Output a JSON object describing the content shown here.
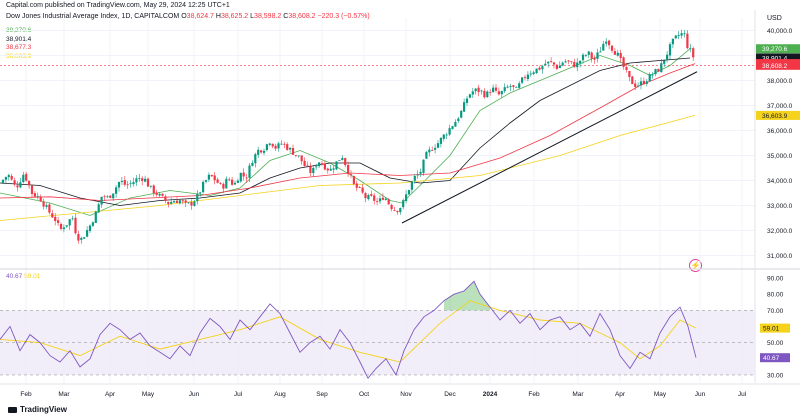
{
  "header": {
    "published": "Capital.com published on TradingView.com, May 29, 2024 12:25 UTC+1"
  },
  "symbol": {
    "name": "Dow Jones Industrial Average Index, 1D, CAPITALCOM",
    "open_label": "O",
    "open": "38,624.7",
    "high_label": "H",
    "high": "38,625.2",
    "low_label": "L",
    "low": "38,598.2",
    "close_label": "C",
    "close": "38,608.2",
    "change": "−220.3 (−0.57%)"
  },
  "ma_legend": [
    {
      "value": "39,270.6",
      "color": "#4caf50"
    },
    {
      "value": "38,901.4",
      "color": "#131722"
    },
    {
      "value": "38,677.3",
      "color": "#f23645"
    },
    {
      "value": "36,603.9",
      "color": "#f5d21b"
    }
  ],
  "rsi_legend": {
    "rsi": "40.67",
    "ma": "59.01",
    "rsi_color": "#7e57c2",
    "ma_color": "#f5d21b"
  },
  "currency": "USD",
  "branding": "TradingView",
  "colors": {
    "up": "#089981",
    "down": "#f23645",
    "grid": "#f0f3fa",
    "rsi_band": "#ede7f6"
  },
  "chart_data": [
    {
      "type": "candlestick",
      "y_axis_labels": [
        "40,000.0",
        "39,000.0",
        "38,000.0",
        "37,000.0",
        "36,000.0",
        "35,000.0",
        "34,000.0",
        "33,000.0",
        "32,000.0",
        "31,000.0"
      ],
      "ylim": [
        30500,
        40500
      ],
      "x_axis_labels": [
        "Feb",
        "Mar",
        "Apr",
        "May",
        "Jun",
        "Jul",
        "Aug",
        "Sep",
        "Oct",
        "Nov",
        "Dec",
        "2024",
        "Feb",
        "Mar",
        "Apr",
        "May",
        "Jun",
        "Jul"
      ],
      "price_tags": [
        {
          "value": "39,270.6",
          "color": "#4caf50",
          "y": 39270.6
        },
        {
          "value": "38,901.4",
          "color": "#131722",
          "y": 38901.4
        },
        {
          "value": "38,677.3",
          "color": "#f23645",
          "y": 38677.3
        },
        {
          "value": "38,608.2",
          "color": "#f23645",
          "y": 38608.2
        },
        {
          "value": "36,603.9",
          "color": "#f5d21b",
          "y": 36603.9
        }
      ],
      "close_path": [
        [
          0,
          33900
        ],
        [
          8,
          34250
        ],
        [
          16,
          33700
        ],
        [
          24,
          34300
        ],
        [
          32,
          33500
        ],
        [
          40,
          33300
        ],
        [
          48,
          32800
        ],
        [
          56,
          32400
        ],
        [
          60,
          32000
        ],
        [
          64,
          32200
        ],
        [
          68,
          32300
        ],
        [
          72,
          32600
        ],
        [
          76,
          31900
        ],
        [
          80,
          31600
        ],
        [
          84,
          31800
        ],
        [
          90,
          32200
        ],
        [
          96,
          32700
        ],
        [
          102,
          33400
        ],
        [
          108,
          33300
        ],
        [
          114,
          33600
        ],
        [
          120,
          34000
        ],
        [
          126,
          33800
        ],
        [
          132,
          33900
        ],
        [
          138,
          34100
        ],
        [
          144,
          34100
        ],
        [
          150,
          33700
        ],
        [
          156,
          33500
        ],
        [
          162,
          33300
        ],
        [
          168,
          33100
        ],
        [
          174,
          33200
        ],
        [
          180,
          33200
        ],
        [
          186,
          33000
        ],
        [
          192,
          33100
        ],
        [
          198,
          33400
        ],
        [
          204,
          33900
        ],
        [
          210,
          34200
        ],
        [
          216,
          34000
        ],
        [
          222,
          33700
        ],
        [
          228,
          34100
        ],
        [
          234,
          33800
        ],
        [
          240,
          34300
        ],
        [
          246,
          34100
        ],
        [
          252,
          34800
        ],
        [
          258,
          35200
        ],
        [
          264,
          35300
        ],
        [
          270,
          35600
        ],
        [
          276,
          35300
        ],
        [
          282,
          35500
        ],
        [
          288,
          35300
        ],
        [
          294,
          35100
        ],
        [
          300,
          34900
        ],
        [
          306,
          34500
        ],
        [
          312,
          34300
        ],
        [
          318,
          34800
        ],
        [
          324,
          34600
        ],
        [
          330,
          34400
        ],
        [
          336,
          34700
        ],
        [
          342,
          35000
        ],
        [
          348,
          34400
        ],
        [
          354,
          33800
        ],
        [
          360,
          33600
        ],
        [
          366,
          33300
        ],
        [
          372,
          33300
        ],
        [
          378,
          33100
        ],
        [
          384,
          33400
        ],
        [
          390,
          33000
        ],
        [
          396,
          32800
        ],
        [
          402,
          33000
        ],
        [
          408,
          33600
        ],
        [
          414,
          34100
        ],
        [
          420,
          34300
        ],
        [
          426,
          35000
        ],
        [
          432,
          35300
        ],
        [
          438,
          35500
        ],
        [
          444,
          35800
        ],
        [
          450,
          36100
        ],
        [
          456,
          36400
        ],
        [
          462,
          36800
        ],
        [
          468,
          37400
        ],
        [
          474,
          37600
        ],
        [
          480,
          37600
        ],
        [
          486,
          37400
        ],
        [
          492,
          37700
        ],
        [
          498,
          37400
        ],
        [
          504,
          37600
        ],
        [
          510,
          37800
        ],
        [
          516,
          37600
        ],
        [
          522,
          38000
        ],
        [
          528,
          38300
        ],
        [
          534,
          38400
        ],
        [
          540,
          38500
        ],
        [
          546,
          38700
        ],
        [
          552,
          38700
        ],
        [
          558,
          38500
        ],
        [
          564,
          38800
        ],
        [
          570,
          38700
        ],
        [
          576,
          38600
        ],
        [
          582,
          38900
        ],
        [
          588,
          39100
        ],
        [
          594,
          38800
        ],
        [
          600,
          39200
        ],
        [
          606,
          39700
        ],
        [
          612,
          39300
        ],
        [
          618,
          39000
        ],
        [
          624,
          38500
        ],
        [
          630,
          38000
        ],
        [
          636,
          37800
        ],
        [
          642,
          37900
        ],
        [
          648,
          38100
        ],
        [
          654,
          38300
        ],
        [
          660,
          38500
        ],
        [
          666,
          39000
        ],
        [
          672,
          39500
        ],
        [
          678,
          39800
        ],
        [
          684,
          39900
        ],
        [
          688,
          39300
        ],
        [
          692,
          39100
        ],
        [
          696,
          38608
        ]
      ],
      "x_year_span": [
        0,
        800
      ],
      "trendline": [
        [
          402,
          32300
        ],
        [
          697,
          38350
        ]
      ],
      "ma_paths": [
        {
          "name": "ma20",
          "color": "#4caf50",
          "points": [
            [
              0,
              33500
            ],
            [
              50,
              33100
            ],
            [
              90,
              32600
            ],
            [
              130,
              33300
            ],
            [
              170,
              33600
            ],
            [
              210,
              33400
            ],
            [
              240,
              33700
            ],
            [
              270,
              34800
            ],
            [
              300,
              35200
            ],
            [
              330,
              34700
            ],
            [
              360,
              34000
            ],
            [
              390,
              33200
            ],
            [
              402,
              33100
            ],
            [
              420,
              33800
            ],
            [
              450,
              35000
            ],
            [
              480,
              36800
            ],
            [
              510,
              37500
            ],
            [
              540,
              38000
            ],
            [
              570,
              38500
            ],
            [
              600,
              39000
            ],
            [
              630,
              38600
            ],
            [
              650,
              38200
            ],
            [
              670,
              38600
            ],
            [
              690,
              39270
            ]
          ]
        },
        {
          "name": "ma50",
          "color": "#131722",
          "points": [
            [
              0,
              33900
            ],
            [
              40,
              33800
            ],
            [
              80,
              33300
            ],
            [
              120,
              33000
            ],
            [
              160,
              33200
            ],
            [
              200,
              33300
            ],
            [
              240,
              33500
            ],
            [
              270,
              34100
            ],
            [
              300,
              34500
            ],
            [
              330,
              34700
            ],
            [
              360,
              34700
            ],
            [
              390,
              34100
            ],
            [
              420,
              33900
            ],
            [
              450,
              34000
            ],
            [
              480,
              35300
            ],
            [
              510,
              36300
            ],
            [
              540,
              37200
            ],
            [
              570,
              37800
            ],
            [
              600,
              38400
            ],
            [
              630,
              38700
            ],
            [
              660,
              38800
            ],
            [
              690,
              38901
            ]
          ]
        },
        {
          "name": "ma100",
          "color": "#f23645",
          "points": [
            [
              0,
              33300
            ],
            [
              50,
              33350
            ],
            [
              100,
              33200
            ],
            [
              150,
              33300
            ],
            [
              200,
              33400
            ],
            [
              250,
              33700
            ],
            [
              300,
              34100
            ],
            [
              350,
              34300
            ],
            [
              400,
              34200
            ],
            [
              450,
              34300
            ],
            [
              500,
              34900
            ],
            [
              550,
              35800
            ],
            [
              600,
              36900
            ],
            [
              640,
              37800
            ],
            [
              670,
              38300
            ],
            [
              695,
              38677
            ]
          ]
        },
        {
          "name": "ma200",
          "color": "#f5d21b",
          "points": [
            [
              0,
              32400
            ],
            [
              80,
              32700
            ],
            [
              160,
              33000
            ],
            [
              240,
              33400
            ],
            [
              320,
              33800
            ],
            [
              400,
              33900
            ],
            [
              480,
              34200
            ],
            [
              560,
              35000
            ],
            [
              620,
              35800
            ],
            [
              695,
              36604
            ]
          ]
        }
      ]
    },
    {
      "type": "line",
      "title": "RSI",
      "y_axis_labels": [
        "90.00",
        "80.00",
        "70.00",
        "60.00",
        "50.00",
        "40.00",
        "30.00"
      ],
      "ylim": [
        25,
        95
      ],
      "band": [
        30,
        70
      ],
      "midline": 50,
      "value_tags": [
        {
          "value": "59.01",
          "color": "#f5d21b",
          "y": 59.01
        },
        {
          "value": "40.67",
          "color": "#7e57c2",
          "y": 40.67
        }
      ],
      "rsi": [
        [
          0,
          52
        ],
        [
          10,
          60
        ],
        [
          20,
          45
        ],
        [
          30,
          55
        ],
        [
          40,
          50
        ],
        [
          50,
          42
        ],
        [
          60,
          38
        ],
        [
          70,
          45
        ],
        [
          80,
          35
        ],
        [
          90,
          40
        ],
        [
          100,
          55
        ],
        [
          110,
          62
        ],
        [
          120,
          58
        ],
        [
          130,
          52
        ],
        [
          140,
          56
        ],
        [
          150,
          48
        ],
        [
          160,
          44
        ],
        [
          170,
          40
        ],
        [
          180,
          48
        ],
        [
          190,
          42
        ],
        [
          200,
          56
        ],
        [
          210,
          65
        ],
        [
          220,
          60
        ],
        [
          230,
          52
        ],
        [
          240,
          64
        ],
        [
          250,
          58
        ],
        [
          260,
          66
        ],
        [
          270,
          74
        ],
        [
          280,
          68
        ],
        [
          290,
          56
        ],
        [
          300,
          44
        ],
        [
          310,
          50
        ],
        [
          320,
          54
        ],
        [
          330,
          46
        ],
        [
          340,
          58
        ],
        [
          350,
          50
        ],
        [
          360,
          38
        ],
        [
          368,
          28
        ],
        [
          376,
          34
        ],
        [
          386,
          40
        ],
        [
          396,
          30
        ],
        [
          404,
          45
        ],
        [
          414,
          58
        ],
        [
          424,
          66
        ],
        [
          434,
          70
        ],
        [
          444,
          76
        ],
        [
          454,
          80
        ],
        [
          464,
          82
        ],
        [
          474,
          88
        ],
        [
          480,
          80
        ],
        [
          490,
          72
        ],
        [
          500,
          64
        ],
        [
          510,
          70
        ],
        [
          520,
          62
        ],
        [
          530,
          68
        ],
        [
          540,
          58
        ],
        [
          550,
          64
        ],
        [
          560,
          66
        ],
        [
          570,
          58
        ],
        [
          580,
          62
        ],
        [
          590,
          54
        ],
        [
          600,
          68
        ],
        [
          610,
          58
        ],
        [
          620,
          42
        ],
        [
          630,
          34
        ],
        [
          640,
          44
        ],
        [
          650,
          40
        ],
        [
          660,
          56
        ],
        [
          670,
          66
        ],
        [
          680,
          72
        ],
        [
          688,
          60
        ],
        [
          696,
          40.67
        ]
      ],
      "rsi_ma": [
        [
          0,
          52
        ],
        [
          40,
          50
        ],
        [
          80,
          42
        ],
        [
          120,
          54
        ],
        [
          160,
          46
        ],
        [
          200,
          52
        ],
        [
          240,
          58
        ],
        [
          280,
          66
        ],
        [
          320,
          52
        ],
        [
          360,
          44
        ],
        [
          400,
          38
        ],
        [
          440,
          62
        ],
        [
          470,
          76
        ],
        [
          500,
          70
        ],
        [
          540,
          64
        ],
        [
          580,
          62
        ],
        [
          620,
          50
        ],
        [
          640,
          40
        ],
        [
          660,
          48
        ],
        [
          680,
          64
        ],
        [
          696,
          59.01
        ]
      ]
    }
  ]
}
